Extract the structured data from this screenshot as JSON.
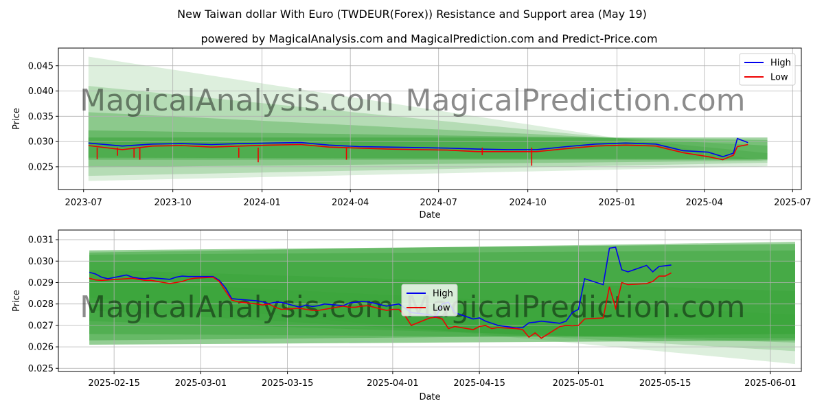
{
  "title": "New Taiwan dollar With Euro (TWDEUR(Forex)) Resistance and Support area (May 19)",
  "subtitle": "powered by MagicalAnalysis.com and MagicalPrediction.com and Predict-Price.com",
  "watermark": {
    "left": "MagicalAnalysis.com",
    "right": "MagicalPrediction.com"
  },
  "colors": {
    "high": "#0000ee",
    "low": "#ee0000",
    "band": "#2e9e2e",
    "grid": "#b0b0b0"
  },
  "chart_data": [
    {
      "type": "line",
      "panel": "top",
      "xlabel": "Date",
      "ylabel": "Price",
      "xlim": [
        "2023-06-05",
        "2025-07-10"
      ],
      "ylim": [
        0.0205,
        0.0485
      ],
      "xticks": [
        "2023-07",
        "2023-10",
        "2024-01",
        "2024-04",
        "2024-07",
        "2024-10",
        "2025-01",
        "2025-04",
        "2025-07"
      ],
      "yticks": [
        0.025,
        0.03,
        0.035,
        0.04,
        0.045
      ],
      "ytick_labels": [
        "0.025",
        "0.030",
        "0.035",
        "0.040",
        "0.045"
      ],
      "legend": [
        "High",
        "Low"
      ],
      "legend_position": "upper right",
      "band_x": [
        "2023-07-06",
        "2025-06-05"
      ],
      "bands": [
        {
          "upper": [
            0.0468,
            0.0261
          ],
          "lower": [
            0.0222,
            0.0251
          ]
        },
        {
          "upper": [
            0.041,
            0.0277
          ],
          "lower": [
            0.0232,
            0.0258
          ]
        },
        {
          "upper": [
            0.0358,
            0.0292
          ],
          "lower": [
            0.0249,
            0.0262
          ]
        },
        {
          "upper": [
            0.0322,
            0.0303
          ],
          "lower": [
            0.0264,
            0.0264
          ]
        },
        {
          "upper": [
            0.0308,
            0.0308
          ],
          "lower": [
            0.0268,
            0.0265
          ]
        }
      ],
      "series": [
        {
          "name": "High",
          "x": [
            "2023-07-06",
            "2023-08-10",
            "2023-09-10",
            "2023-10-10",
            "2023-11-10",
            "2023-12-10",
            "2024-01-10",
            "2024-02-10",
            "2024-03-10",
            "2024-04-10",
            "2024-05-10",
            "2024-06-10",
            "2024-07-10",
            "2024-08-10",
            "2024-09-10",
            "2024-10-10",
            "2024-11-10",
            "2024-12-10",
            "2025-01-10",
            "2025-02-10",
            "2025-03-10",
            "2025-04-05",
            "2025-04-20",
            "2025-05-01",
            "2025-05-05",
            "2025-05-16"
          ],
          "y": [
            0.0297,
            0.0291,
            0.0295,
            0.0296,
            0.0294,
            0.0296,
            0.0297,
            0.0298,
            0.0293,
            0.029,
            0.0289,
            0.0288,
            0.0287,
            0.0285,
            0.0284,
            0.0284,
            0.029,
            0.0295,
            0.0297,
            0.0295,
            0.0282,
            0.0279,
            0.027,
            0.0277,
            0.0306,
            0.0298
          ]
        },
        {
          "name": "Low",
          "x": [
            "2023-07-06",
            "2023-08-10",
            "2023-09-10",
            "2023-10-10",
            "2023-11-10",
            "2023-12-10",
            "2024-01-10",
            "2024-02-10",
            "2024-03-10",
            "2024-04-10",
            "2024-05-10",
            "2024-06-10",
            "2024-07-10",
            "2024-08-10",
            "2024-09-10",
            "2024-10-10",
            "2024-11-10",
            "2024-12-10",
            "2025-01-10",
            "2025-02-10",
            "2025-03-10",
            "2025-04-05",
            "2025-04-20",
            "2025-05-01",
            "2025-05-05",
            "2025-05-16"
          ],
          "y": [
            0.0292,
            0.0284,
            0.0291,
            0.0292,
            0.0289,
            0.0291,
            0.0293,
            0.0294,
            0.0289,
            0.0287,
            0.0285,
            0.0284,
            0.0283,
            0.028,
            0.028,
            0.028,
            0.0286,
            0.0291,
            0.0293,
            0.0291,
            0.0278,
            0.027,
            0.0264,
            0.0273,
            0.029,
            0.0294
          ]
        }
      ],
      "spikes_low": [
        {
          "x": "2023-07-15",
          "y": 0.0265
        },
        {
          "x": "2023-08-05",
          "y": 0.0272
        },
        {
          "x": "2023-08-22",
          "y": 0.0268
        },
        {
          "x": "2023-08-28",
          "y": 0.0264
        },
        {
          "x": "2023-12-08",
          "y": 0.0268
        },
        {
          "x": "2023-12-28",
          "y": 0.0259
        },
        {
          "x": "2024-03-28",
          "y": 0.0264
        },
        {
          "x": "2024-10-05",
          "y": 0.0252
        },
        {
          "x": "2024-08-15",
          "y": 0.0273
        }
      ]
    },
    {
      "type": "line",
      "panel": "bottom",
      "xlabel": "Date",
      "ylabel": "Price",
      "xlim": [
        "2025-02-06",
        "2025-06-06"
      ],
      "ylim": [
        0.02485,
        0.03145
      ],
      "xticks": [
        "2025-02-15",
        "2025-03-01",
        "2025-03-15",
        "2025-04-01",
        "2025-04-15",
        "2025-05-01",
        "2025-05-15",
        "2025-06-01"
      ],
      "yticks": [
        0.025,
        0.026,
        0.027,
        0.028,
        0.029,
        0.03,
        0.031
      ],
      "ytick_labels": [
        "0.025",
        "0.026",
        "0.027",
        "0.028",
        "0.029",
        "0.030",
        "0.031"
      ],
      "legend": [
        "High",
        "Low"
      ],
      "legend_position": "center",
      "band_x": [
        "2025-02-11",
        "2025-06-05"
      ],
      "bands": [
        {
          "upper": [
            0.0291,
            0.0275
          ],
          "lower": [
            0.0283,
            0.0252
          ]
        },
        {
          "upper": [
            0.0296,
            0.0286
          ],
          "lower": [
            0.0277,
            0.0258
          ]
        },
        {
          "upper": [
            0.03,
            0.03
          ],
          "lower": [
            0.0272,
            0.0262
          ]
        },
        {
          "upper": [
            0.0303,
            0.0305
          ],
          "lower": [
            0.0266,
            0.0264
          ]
        },
        {
          "upper": [
            0.0304,
            0.0309
          ],
          "lower": [
            0.0263,
            0.0266
          ]
        },
        {
          "upper": [
            0.0305,
            0.0308
          ],
          "lower": [
            0.0261,
            0.0263
          ]
        }
      ],
      "series": [
        {
          "name": "High",
          "x": [
            "2025-02-11",
            "2025-02-12",
            "2025-02-13",
            "2025-02-14",
            "2025-02-17",
            "2025-02-18",
            "2025-02-19",
            "2025-02-20",
            "2025-02-21",
            "2025-02-24",
            "2025-02-25",
            "2025-02-26",
            "2025-02-27",
            "2025-02-28",
            "2025-03-03",
            "2025-03-04",
            "2025-03-05",
            "2025-03-06",
            "2025-03-07",
            "2025-03-10",
            "2025-03-11",
            "2025-03-12",
            "2025-03-13",
            "2025-03-14",
            "2025-03-17",
            "2025-03-18",
            "2025-03-19",
            "2025-03-20",
            "2025-03-21",
            "2025-03-24",
            "2025-03-25",
            "2025-03-26",
            "2025-03-27",
            "2025-03-28",
            "2025-03-31",
            "2025-04-01",
            "2025-04-02",
            "2025-04-03",
            "2025-04-04",
            "2025-04-07",
            "2025-04-08",
            "2025-04-09",
            "2025-04-10",
            "2025-04-11",
            "2025-04-14",
            "2025-04-15",
            "2025-04-16",
            "2025-04-17",
            "2025-04-18",
            "2025-04-21",
            "2025-04-22",
            "2025-04-23",
            "2025-04-24",
            "2025-04-25",
            "2025-04-28",
            "2025-04-29",
            "2025-04-30",
            "2025-05-01",
            "2025-05-02",
            "2025-05-05",
            "2025-05-06",
            "2025-05-07",
            "2025-05-08",
            "2025-05-09",
            "2025-05-12",
            "2025-05-13",
            "2025-05-14",
            "2025-05-15",
            "2025-05-16"
          ],
          "y": [
            0.02948,
            0.0294,
            0.02925,
            0.02918,
            0.02935,
            0.02925,
            0.0292,
            0.02918,
            0.02922,
            0.02915,
            0.02925,
            0.0293,
            0.02928,
            0.02928,
            0.02928,
            0.0291,
            0.02875,
            0.02825,
            0.02822,
            0.02815,
            0.0281,
            0.02802,
            0.02808,
            0.02808,
            0.02785,
            0.02795,
            0.02788,
            0.02792,
            0.028,
            0.02792,
            0.02805,
            0.02808,
            0.02812,
            0.0281,
            0.0279,
            0.02795,
            0.028,
            0.0278,
            0.0276,
            0.0275,
            0.0274,
            0.028,
            0.02808,
            0.0276,
            0.0273,
            0.02735,
            0.0272,
            0.0271,
            0.027,
            0.02688,
            0.0269,
            0.02712,
            0.02715,
            0.0272,
            0.0271,
            0.0272,
            0.0276,
            0.02775,
            0.02918,
            0.0289,
            0.0306,
            0.03065,
            0.0296,
            0.0295,
            0.0298,
            0.0295,
            0.02975,
            0.02978,
            0.02982
          ]
        },
        {
          "name": "Low",
          "x": [
            "2025-02-11",
            "2025-02-12",
            "2025-02-13",
            "2025-02-14",
            "2025-02-17",
            "2025-02-18",
            "2025-02-19",
            "2025-02-20",
            "2025-02-21",
            "2025-02-24",
            "2025-02-25",
            "2025-02-26",
            "2025-02-27",
            "2025-02-28",
            "2025-03-03",
            "2025-03-04",
            "2025-03-05",
            "2025-03-06",
            "2025-03-07",
            "2025-03-10",
            "2025-03-11",
            "2025-03-12",
            "2025-03-13",
            "2025-03-14",
            "2025-03-17",
            "2025-03-18",
            "2025-03-19",
            "2025-03-20",
            "2025-03-21",
            "2025-03-24",
            "2025-03-25",
            "2025-03-26",
            "2025-03-27",
            "2025-03-28",
            "2025-03-31",
            "2025-04-01",
            "2025-04-02",
            "2025-04-03",
            "2025-04-04",
            "2025-04-07",
            "2025-04-08",
            "2025-04-09",
            "2025-04-10",
            "2025-04-11",
            "2025-04-14",
            "2025-04-15",
            "2025-04-16",
            "2025-04-17",
            "2025-04-18",
            "2025-04-21",
            "2025-04-22",
            "2025-04-23",
            "2025-04-24",
            "2025-04-25",
            "2025-04-28",
            "2025-04-29",
            "2025-04-30",
            "2025-05-01",
            "2025-05-02",
            "2025-05-05",
            "2025-05-06",
            "2025-05-07",
            "2025-05-08",
            "2025-05-09",
            "2025-05-12",
            "2025-05-13",
            "2025-05-14",
            "2025-05-15",
            "2025-05-16"
          ],
          "y": [
            0.0292,
            0.02912,
            0.0291,
            0.02912,
            0.02918,
            0.0292,
            0.02915,
            0.0291,
            0.0291,
            0.02895,
            0.029,
            0.02905,
            0.02915,
            0.0292,
            0.02925,
            0.02905,
            0.0286,
            0.02818,
            0.0281,
            0.028,
            0.02795,
            0.028,
            0.02785,
            0.02775,
            0.0278,
            0.02775,
            0.0277,
            0.0277,
            0.02775,
            0.0279,
            0.02785,
            0.02785,
            0.0279,
            0.02792,
            0.0277,
            0.02775,
            0.02775,
            0.02745,
            0.027,
            0.02735,
            0.02738,
            0.0273,
            0.02685,
            0.02695,
            0.0268,
            0.02695,
            0.027,
            0.02685,
            0.0269,
            0.02685,
            0.0268,
            0.02645,
            0.02665,
            0.0264,
            0.02695,
            0.027,
            0.02698,
            0.027,
            0.0273,
            0.02735,
            0.0288,
            0.0278,
            0.029,
            0.0289,
            0.02895,
            0.02905,
            0.0293,
            0.0293,
            0.02945
          ]
        }
      ]
    }
  ]
}
